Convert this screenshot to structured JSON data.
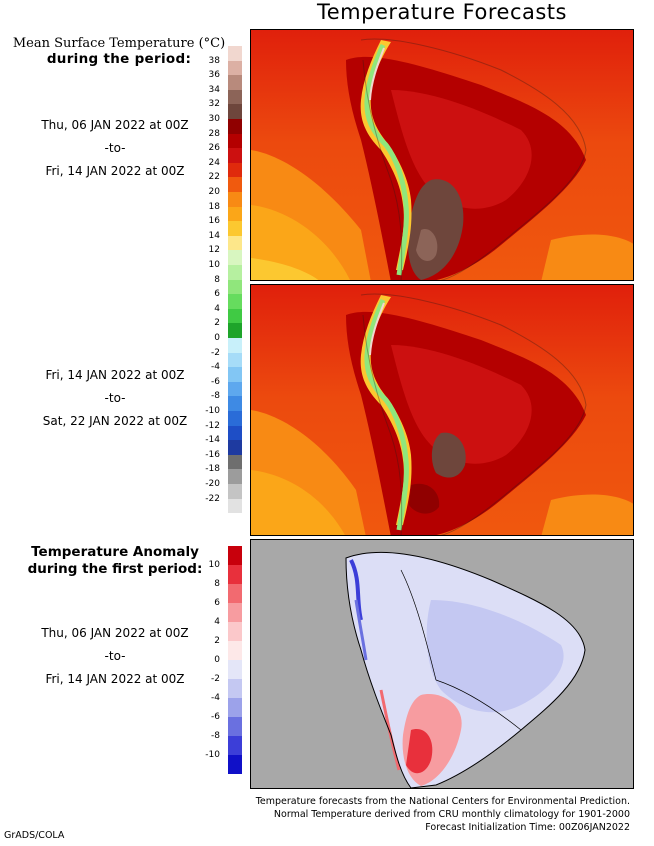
{
  "title": "Temperature Forecasts",
  "legend1": {
    "heading_line1": "Mean Surface Temperature (°C)",
    "heading_line2": "during the period:",
    "period1": {
      "start": "Thu, 06 JAN 2022 at 00Z",
      "sep": "-to-",
      "end": "Fri, 14 JAN 2022 at 00Z"
    },
    "period2": {
      "start": "Fri, 14 JAN 2022 at 00Z",
      "sep": "-to-",
      "end": "Sat, 22 JAN 2022 at 00Z"
    },
    "labels": [
      "38",
      "36",
      "34",
      "32",
      "30",
      "28",
      "26",
      "24",
      "22",
      "20",
      "18",
      "16",
      "14",
      "12",
      "10",
      "8",
      "6",
      "4",
      "2",
      "0",
      "-2",
      "-4",
      "-6",
      "-8",
      "-10",
      "-12",
      "-14",
      "-16",
      "-18",
      "-20",
      "-22"
    ],
    "colors": [
      "#f1d7cf",
      "#dcb0a4",
      "#b88a7c",
      "#8c6458",
      "#6e463c",
      "#900000",
      "#b40000",
      "#cc1010",
      "#e02a0c",
      "#f05a0e",
      "#f88a14",
      "#fba618",
      "#fcc830",
      "#fde78a",
      "#d8f6c0",
      "#b6f0a0",
      "#90e67c",
      "#66dc5e",
      "#40ca44",
      "#1ea42a",
      "#c8f0fa",
      "#a6dcf8",
      "#82c6f4",
      "#5ea8ee",
      "#3e8ae4",
      "#2a6cd8",
      "#1e4ec6",
      "#1e3aa0",
      "#6e6e6e",
      "#9c9c9c",
      "#c4c4c4",
      "#e2e2e2"
    ]
  },
  "legend2": {
    "heading_line1": "Temperature Anomaly",
    "heading_line2": "during the first period:",
    "period": {
      "start": "Thu, 06 JAN 2022 at 00Z",
      "sep": "-to-",
      "end": "Fri, 14 JAN 2022 at 00Z"
    },
    "labels": [
      "10",
      "8",
      "6",
      "4",
      "2",
      "0",
      "-2",
      "-4",
      "-6",
      "-8",
      "-10"
    ],
    "colors": [
      "#c8000c",
      "#e8303c",
      "#f26a70",
      "#f79ca0",
      "#fbc8ca",
      "#fde8e8",
      "#e4e6f8",
      "#c4c8f2",
      "#9ca2ea",
      "#6a70e0",
      "#3c3ed8",
      "#1010c8"
    ]
  },
  "footer": {
    "line1": "Temperature forecasts from the National Centers for Environmental Prediction.",
    "line2": "Normal Temperature derived from CRU monthly climatology for 1901-2000",
    "line3": "Forecast Initialization Time: 00Z06JAN2022"
  },
  "credit": "GrADS/COLA"
}
